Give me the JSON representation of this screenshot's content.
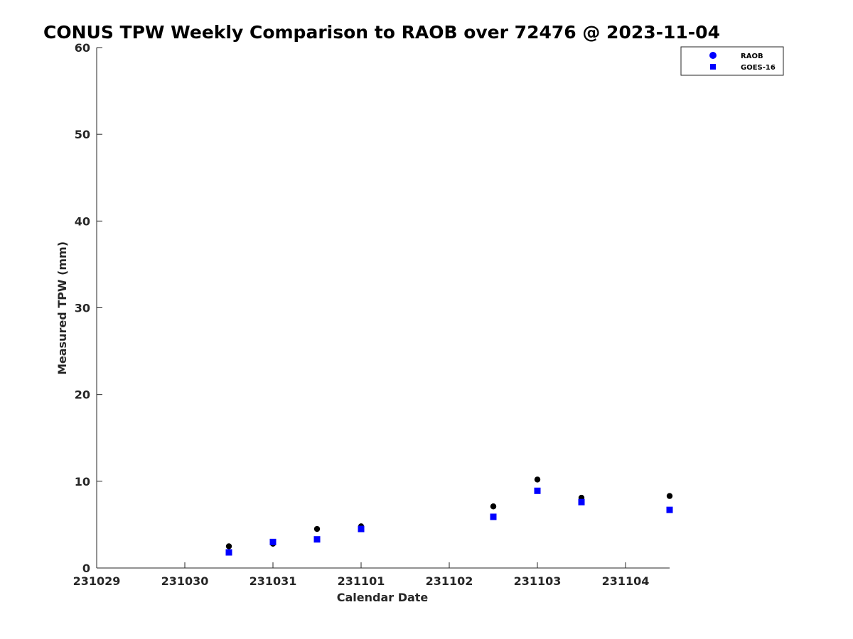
{
  "chart_data": {
    "type": "scatter",
    "title": "CONUS TPW Weekly Comparison to RAOB over 72476 @ 2023-11-04",
    "xlabel": "Calendar Date",
    "ylabel": "Measured TPW (mm)",
    "xlim": [
      "2023-10-29",
      "2023-11-04 12:00"
    ],
    "ylim": [
      0,
      60
    ],
    "xticks": [
      "231029",
      "231030",
      "231031",
      "231101",
      "231102",
      "231103",
      "231104"
    ],
    "yticks": [
      0,
      10,
      20,
      30,
      40,
      50,
      60
    ],
    "grid": false,
    "legend_position": "top-right",
    "series": [
      {
        "name": "RAOB",
        "marker": "circle",
        "color": "#000000",
        "legend_color": "#0000ff",
        "x": [
          "2023-10-30 12:00",
          "2023-10-31 00:00",
          "2023-10-31 12:00",
          "2023-11-01 00:00",
          "2023-11-02 12:00",
          "2023-11-03 00:00",
          "2023-11-03 12:00",
          "2023-11-04 12:00"
        ],
        "y": [
          2.5,
          2.8,
          4.5,
          4.8,
          7.1,
          10.2,
          8.1,
          8.3
        ]
      },
      {
        "name": "GOES-16",
        "marker": "square",
        "color": "#0000ff",
        "legend_color": "#0000ff",
        "x": [
          "2023-10-30 12:00",
          "2023-10-31 00:00",
          "2023-10-31 12:00",
          "2023-11-01 00:00",
          "2023-11-02 12:00",
          "2023-11-03 00:00",
          "2023-11-03 12:00",
          "2023-11-04 12:00"
        ],
        "y": [
          1.8,
          3.0,
          3.3,
          4.5,
          5.9,
          8.9,
          7.6,
          6.7
        ]
      }
    ]
  }
}
